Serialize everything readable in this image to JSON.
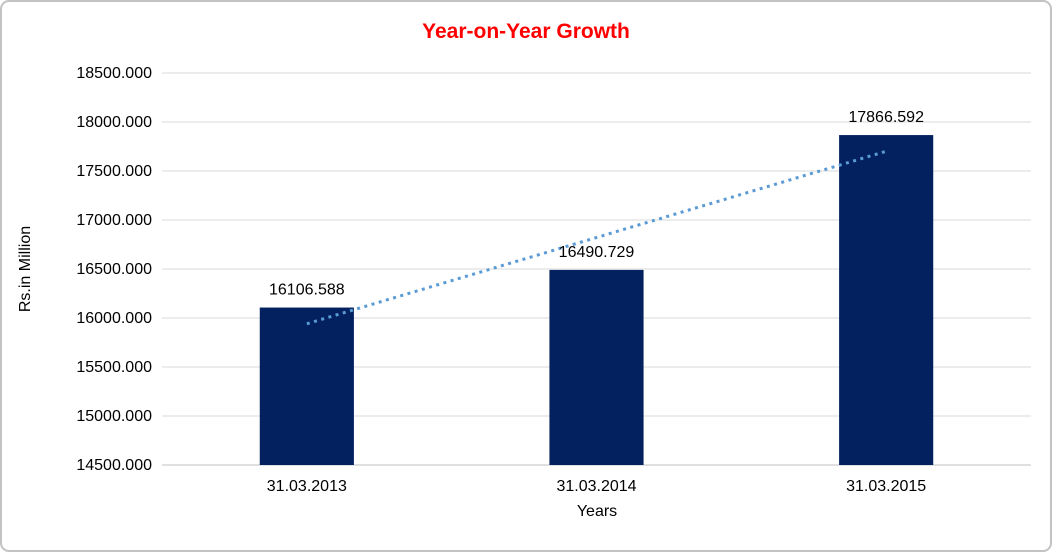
{
  "chart_data": {
    "type": "bar",
    "title": "Year-on-Year Growth",
    "title_color": "#ff0000",
    "xlabel": "Years",
    "ylabel": "Rs.in Million",
    "categories": [
      "31.03.2013",
      "31.03.2014",
      "31.03.2015"
    ],
    "series": [
      {
        "name": "Year-on-Year Growth",
        "values": [
          16106.588,
          16490.729,
          17866.592
        ]
      }
    ],
    "data_labels": [
      "16106.588",
      "16490.729",
      "17866.592"
    ],
    "ylim": [
      14500,
      18500
    ],
    "ytick_step": 500,
    "ytick_labels": [
      "14500.000",
      "15000.000",
      "15500.000",
      "16000.000",
      "16500.000",
      "17000.000",
      "17500.000",
      "18000.000",
      "18500.000"
    ],
    "grid": true,
    "legend_position": "none",
    "bar_color": "#03215e",
    "gridline_color": "#d9d9d9",
    "axis_line_color": "#c0c0c0",
    "trendline": {
      "type": "linear",
      "style": "dotted",
      "color": "#5b9bd5",
      "start_value": 15941.301,
      "end_value": 17701.303
    }
  }
}
